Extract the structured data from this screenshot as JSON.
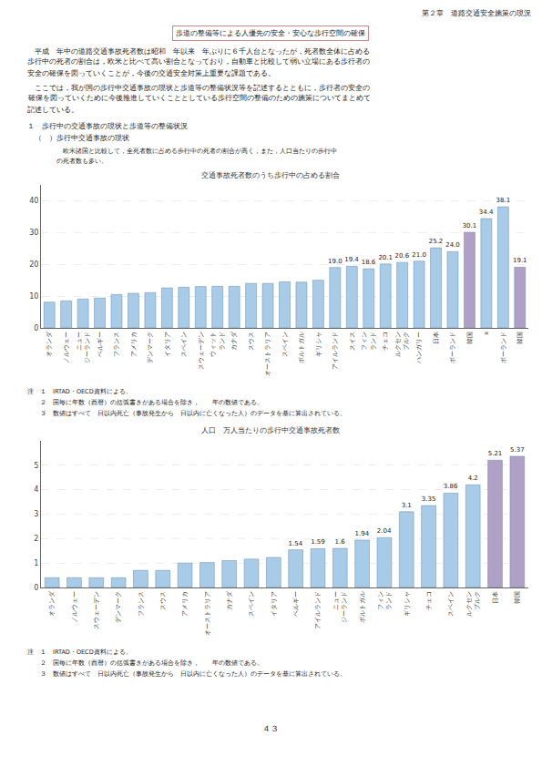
{
  "chart_data": [
    {
      "type": "bar",
      "title": "交通事故死者数のうち歩行中の占める割合",
      "categories": [
        "オランダ",
        "ノルウェー",
        "ニュー\nジーランド",
        "ベルギー",
        "フランス",
        "アメリカ",
        "デンマーク",
        "イタリア",
        "スペイン",
        "スウェーデン",
        "ウィット\nランド",
        "カナダ",
        "スウス",
        "オーストラリア",
        "スペイン",
        "ポルトガル",
        "ギリシャ",
        "アイルランド",
        "スイス",
        "フィン\nランド",
        "チェコ",
        "ルクセン\nブルク",
        "ハンガリー",
        "日本",
        "ポーランド",
        "韓国",
        "x",
        "ポーランド",
        "韓国"
      ],
      "values": [
        8.1,
        8.5,
        9.1,
        9.4,
        10.5,
        10.9,
        11.1,
        12.6,
        12.8,
        13.0,
        13.1,
        13.1,
        14.0,
        14.0,
        14.5,
        14.4,
        15.0,
        19.0,
        19.4,
        18.6,
        20.1,
        20.6,
        21.0,
        25.2,
        24.0,
        30.1,
        34.4,
        38.1,
        19.1
      ],
      "value_labels": [
        null,
        null,
        null,
        null,
        null,
        null,
        null,
        null,
        null,
        null,
        null,
        null,
        null,
        null,
        null,
        null,
        null,
        "19.0",
        "19.4",
        "18.6",
        "20.1",
        "20.6",
        "21.0",
        "25.2",
        "24.0",
        "30.1",
        "34.4",
        "38.1",
        "19.1"
      ],
      "colors": [
        "#a8cce8",
        "#a8cce8",
        "#a8cce8",
        "#a8cce8",
        "#a8cce8",
        "#a8cce8",
        "#a8cce8",
        "#a8cce8",
        "#a8cce8",
        "#a8cce8",
        "#a8cce8",
        "#a8cce8",
        "#a8cce8",
        "#a8cce8",
        "#a8cce8",
        "#a8cce8",
        "#a8cce8",
        "#a8cce8",
        "#a8cce8",
        "#a8cce8",
        "#a8cce8",
        "#a8cce8",
        "#a8cce8",
        "#a8cce8",
        "#a8cce8",
        "#b0a0c8",
        "#a8cce8",
        "#a8cce8",
        "#b0a0c8"
      ],
      "ylim": [
        0,
        45
      ],
      "yticks": [
        0,
        10,
        20,
        30,
        40
      ],
      "grid": true,
      "data_labels": true,
      "annotations": [
        "第２章　道路交通安全施策の現況",
        "歩道の整備等による人優先の安全・安心な歩行空間の確保",
        "　平成　年中の道路交通事故死者数は昭和　年以来　年ぶりに６千人台となったが，死者数全体に占める",
        "歩行中の死者の割合は，欧米と比べて高い割合となっており，自動車と比較して弱い立場にある歩行者の",
        "安全の確保を図っていくことが，今後の交通安全対策上重要な課題である。",
        "　ここでは，我が国の歩行中交通事故の現状と歩道等の整備状況等を記述するとともに，歩行者の安全の",
        "確保を図っていくために今後推進していくこととしている歩行空間の整備のための施策についてまとめて",
        "記述している。",
        "１　歩行中の交通事故の現状と歩道等の整備状況",
        "（　）歩行中交通事故の現状",
        "　欧米諸国と比較して，全死者数に占める歩行中の死者の割合が高く，また，人口当たりの歩行中",
        "の死者数も多い。",
        "注　１　IRTAD・OECD資料による。",
        "　　２　国毎に年数（西暦）の括弧書きがある場合を除き，　　年の数値である。",
        "　　３　数値はすべて　日以内死亡（事故発生から　日以内に亡くなった人）のデータを基に算出されている。"
      ]
    },
    {
      "type": "bar",
      "title": "人口　万人当たりの歩行中交通事故死者数",
      "categories": [
        "オランダ",
        "ノルウェー",
        "スウェーデン",
        "デンマーク",
        "フランス",
        "スウス",
        "アメリカ",
        "オーストラリア",
        "カナダ",
        "スペイン",
        "イタリア",
        "ベルギー",
        "アイルランド",
        "ニュー\nジーランド",
        "ポルトガル",
        "フィン\nランド",
        "ギリシャ",
        "チェコ",
        "スペイン",
        "ルクセン\nブルク",
        "日本",
        "韓国"
      ],
      "values": [
        0.4,
        0.4,
        0.4,
        0.4,
        0.7,
        0.7,
        1.0,
        1.02,
        1.1,
        1.16,
        1.23,
        1.54,
        1.59,
        1.6,
        1.94,
        2.04,
        3.1,
        3.35,
        3.86,
        4.2,
        5.21,
        5.37
      ],
      "value_labels": [
        null,
        null,
        null,
        null,
        null,
        null,
        null,
        null,
        null,
        null,
        null,
        "1.54",
        "1.59",
        "1.6",
        "1.94",
        "2.04",
        "3.1",
        "3.35",
        "3.86",
        "4.2",
        "5.21",
        "5.37"
      ],
      "colors": [
        "#a8cce8",
        "#a8cce8",
        "#a8cce8",
        "#a8cce8",
        "#a8cce8",
        "#a8cce8",
        "#a8cce8",
        "#a8cce8",
        "#a8cce8",
        "#a8cce8",
        "#a8cce8",
        "#a8cce8",
        "#a8cce8",
        "#a8cce8",
        "#a8cce8",
        "#a8cce8",
        "#a8cce8",
        "#a8cce8",
        "#a8cce8",
        "#a8cce8",
        "#b0a0c8",
        "#b0a0c8"
      ],
      "ylim": [
        0,
        6
      ],
      "yticks": [
        0,
        1,
        2,
        3,
        4,
        5
      ],
      "grid": true,
      "data_labels": true,
      "annotations": [
        "注　１　IRTAD・OECD資料による。",
        "　　２　国毎に年数（西暦）の括弧書きがある場合を除き，　　年の数値である。",
        "　　３　数値はすべて　日以内死亡（事故発生から　日以内に亡くなった人）のデータを基に算出されている。",
        "４３"
      ]
    }
  ]
}
